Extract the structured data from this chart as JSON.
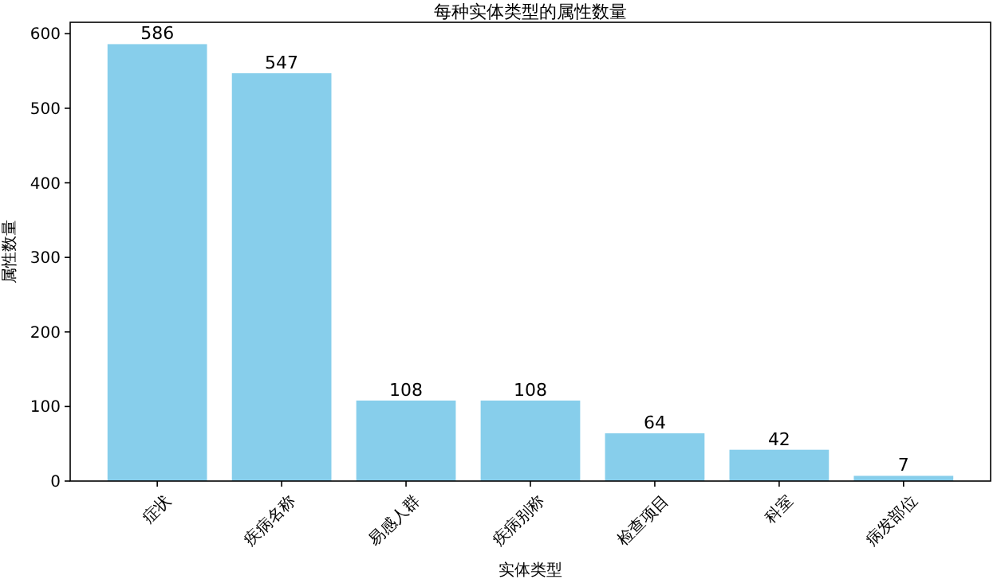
{
  "chart_data": {
    "type": "bar",
    "title": "每种实体类型的属性数量",
    "xlabel": "实体类型",
    "ylabel": "属性数量",
    "categories": [
      "症状",
      "疾病名称",
      "易感人群",
      "疾病别称",
      "检查项目",
      "科室",
      "病发部位"
    ],
    "values": [
      586,
      547,
      108,
      108,
      64,
      42,
      7
    ],
    "color": "#87ceeb",
    "ylim": [
      0,
      615.3
    ],
    "yticks": [
      0,
      100,
      200,
      300,
      400,
      500,
      600
    ],
    "data_labels": true
  }
}
